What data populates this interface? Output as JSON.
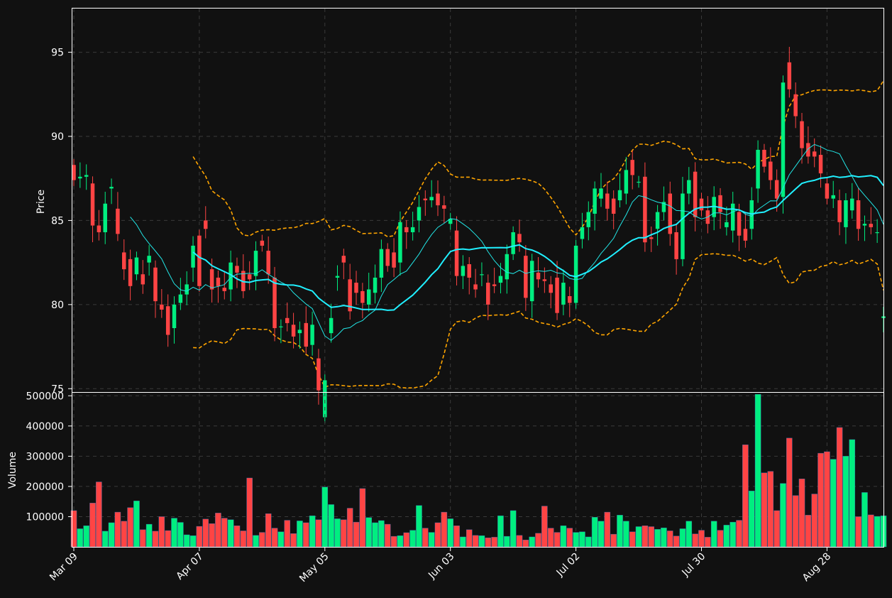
{
  "chart_data": [
    {
      "type": "candlestick",
      "ylabel": "Price",
      "ylim": [
        74.8,
        97.6
      ],
      "yticks": [
        75,
        80,
        85,
        90,
        95
      ],
      "grid": true,
      "colors": {
        "up": "#00ee80",
        "down": "#ff4444",
        "ma_short": "#22e6e6",
        "ma_long": "#20f0ff",
        "band": "#ffa500",
        "background": "#111111"
      },
      "days": 130,
      "xticks": [
        {
          "label": "Mar 09",
          "day": 0
        },
        {
          "label": "Apr 07",
          "day": 20
        },
        {
          "label": "May 05",
          "day": 40
        },
        {
          "label": "Jun 03",
          "day": 60
        },
        {
          "label": "Jul 02",
          "day": 80
        },
        {
          "label": "Jul 30",
          "day": 100
        },
        {
          "label": "Aug 28",
          "day": 120
        }
      ],
      "overlays": [
        {
          "id": "ma_short",
          "style": "thin",
          "values": []
        },
        {
          "id": "ma_long",
          "style": "thick",
          "values": []
        },
        {
          "id": "upper_band",
          "style": "dashed",
          "values": []
        },
        {
          "id": "lower_band",
          "style": "dashed",
          "values": []
        }
      ],
      "close": [
        87.4,
        87.6,
        87.7,
        84.7,
        84.3,
        86.0,
        87.0,
        84.2,
        82.1,
        81.1,
        82.8,
        81.2,
        82.9,
        80.2,
        79.7,
        78.2,
        80.0,
        80.6,
        81.2,
        83.5,
        81.1,
        84.5,
        80.9,
        81.1,
        80.8,
        82.5,
        81.9,
        80.8,
        81.5,
        83.2,
        83.5,
        81.8,
        78.6,
        78.7,
        78.9,
        78.1,
        78.5,
        77.5,
        78.8,
        74.9,
        75.5,
        79.2,
        81.7,
        82.5,
        79.6,
        80.7,
        80.1,
        80.9,
        81.6,
        83.3,
        82.3,
        82.2,
        84.9,
        84.3,
        84.6,
        85.8,
        86.2,
        86.4,
        85.9,
        85.7,
        85.1,
        81.7,
        82.3,
        81.6,
        80.9,
        81.8,
        80.0,
        81.1,
        81.7,
        83.0,
        84.3,
        83.7,
        80.4,
        82.6,
        81.5,
        81.4,
        80.7,
        79.5,
        81.3,
        80.1,
        83.5,
        84.6,
        85.5,
        86.9,
        86.9,
        85.7,
        85.4,
        86.8,
        88.0,
        87.7,
        87.3,
        83.7,
        83.9,
        85.5,
        86.1,
        84.2,
        82.7,
        86.6,
        87.4,
        85.2,
        85.6,
        84.8,
        86.4,
        85.5,
        84.9,
        86.0,
        84.1,
        83.8,
        86.2,
        89.2,
        88.2,
        87.4,
        86.3,
        93.2,
        92.8,
        91.2,
        89.3,
        88.8,
        88.8,
        87.8,
        86.3,
        86.5,
        84.9,
        86.2,
        86.3,
        84.5,
        84.8,
        84.6,
        84.3,
        79.3
      ],
      "candles_estimated": true,
      "open": [
        88.3,
        87.5,
        87.6,
        87.2,
        84.7,
        84.3,
        86.9,
        85.7,
        83.1,
        82.7,
        81.8,
        81.8,
        82.5,
        82.2,
        80.0,
        79.9,
        78.6,
        80.1,
        80.6,
        82.2,
        84.1,
        85.0,
        82.1,
        81.6,
        81.0,
        80.9,
        82.3,
        82.0,
        81.8,
        81.7,
        83.8,
        83.2,
        81.6,
        78.7,
        79.2,
        78.8,
        78.3,
        78.9,
        77.6,
        76.8,
        73.3,
        78.3,
        81.6,
        82.9,
        81.5,
        81.3,
        80.8,
        80.0,
        80.7,
        81.6,
        83.3,
        83.1,
        82.5,
        84.6,
        84.3,
        85.0,
        86.3,
        86.2,
        86.6,
        85.9,
        84.8,
        84.4,
        81.7,
        82.4,
        81.2,
        81.8,
        81.3,
        81.2,
        81.3,
        81.5,
        83.0,
        84.2,
        82.9,
        80.2,
        81.9,
        81.5,
        81.2,
        81.6,
        80.0,
        80.5,
        80.1,
        83.9,
        84.6,
        85.4,
        86.3,
        86.6,
        86.3,
        86.2,
        86.6,
        88.6,
        87.3,
        87.6,
        84.0,
        84.5,
        85.5,
        86.6,
        84.3,
        82.7,
        86.6,
        87.9,
        86.3,
        85.6,
        85.2,
        86.5,
        84.6,
        84.4,
        85.5,
        84.5,
        84.5,
        86.9,
        89.2,
        88.5,
        87.4,
        86.4,
        94.4,
        92.5,
        90.9,
        89.6,
        89.1,
        88.9,
        87.2,
        86.3,
        86.2,
        84.6,
        85.6,
        86.2,
        84.7,
        84.8,
        84.3,
        79.2
      ],
      "volume": [
        120000,
        60000,
        70000,
        145000,
        215000,
        52000,
        80000,
        115000,
        85000,
        130000,
        152000,
        57000,
        75000,
        52000,
        100000,
        54000,
        95000,
        81000,
        40000,
        37000,
        68000,
        92000,
        77000,
        112000,
        95000,
        90000,
        70000,
        53000,
        228000,
        38000,
        48000,
        110000,
        62000,
        50000,
        88000,
        44000,
        86000,
        80000,
        103000,
        90000,
        198000,
        140000,
        93000,
        90000,
        128000,
        82000,
        193000,
        97000,
        80000,
        87000,
        75000,
        35000,
        37000,
        47000,
        55000,
        137000,
        62000,
        48000,
        80000,
        115000,
        93000,
        70000,
        33000,
        57000,
        38000,
        37000,
        30000,
        32000,
        103000,
        35000,
        120000,
        38000,
        23000,
        33000,
        45000,
        135000,
        62000,
        48000,
        70000,
        62000,
        48000,
        50000,
        33000,
        98000,
        85000,
        115000,
        42000,
        105000,
        85000,
        50000,
        67000,
        70000,
        67000,
        58000,
        63000,
        53000,
        36000,
        60000,
        85000,
        43000,
        55000,
        32000,
        85000,
        55000,
        72000,
        82000,
        88000,
        338000,
        185000,
        505000,
        245000,
        250000,
        120000,
        210000,
        360000,
        170000,
        225000,
        105000,
        175000,
        310000,
        315000,
        290000,
        395000,
        300000,
        355000,
        100000,
        180000,
        106000,
        101000,
        103000
      ]
    },
    {
      "type": "bar",
      "ylabel": "Volume",
      "ylim": [
        0,
        510000
      ],
      "yticks": [
        100000,
        200000,
        300000,
        400000,
        500000
      ],
      "grid": true
    }
  ]
}
